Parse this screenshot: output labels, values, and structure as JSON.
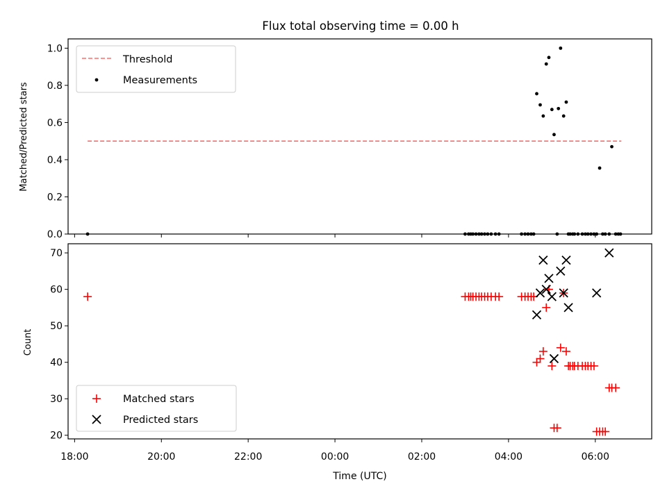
{
  "title": "Flux total observing time = 0.00 h",
  "chart_data": [
    {
      "panel": "top",
      "type": "scatter",
      "ylabel": "Matched/Predicted stars",
      "xlim": [
        -0.15,
        13.3
      ],
      "ylim": [
        0.0,
        1.05
      ],
      "yticks": [
        0.0,
        0.2,
        0.4,
        0.6,
        0.8,
        1.0
      ],
      "ytick_labels": [
        "0.0",
        "0.2",
        "0.4",
        "0.6",
        "0.8",
        "1.0"
      ],
      "legend_position": "upper left",
      "threshold": {
        "name": "Threshold",
        "value": 0.5,
        "x_range": [
          0.3,
          12.6
        ],
        "color": "#ff6b6b",
        "style": "dashed"
      },
      "series": [
        {
          "name": "Measurements",
          "marker": "dot",
          "color": "#000000",
          "x": [
            0.3,
            9.0,
            9.08,
            9.13,
            9.18,
            9.25,
            9.32,
            9.38,
            9.45,
            9.52,
            9.6,
            9.7,
            9.78,
            10.3,
            10.38,
            10.45,
            10.52,
            10.58,
            10.65,
            10.73,
            10.8,
            10.87,
            10.93,
            11.0,
            11.05,
            11.12,
            11.15,
            11.2,
            11.27,
            11.33,
            11.38,
            11.42,
            11.48,
            11.52,
            11.6,
            11.7,
            11.77,
            11.83,
            11.9,
            11.97,
            12.03,
            12.1,
            12.17,
            12.23,
            12.32,
            12.38,
            12.47,
            12.53,
            12.58
          ],
          "y": [
            0.0,
            0.0,
            0.0,
            0.0,
            0.0,
            0.0,
            0.0,
            0.0,
            0.0,
            0.0,
            0.0,
            0.0,
            0.0,
            0.0,
            0.0,
            0.0,
            0.0,
            0.0,
            0.755,
            0.695,
            0.635,
            0.915,
            0.95,
            0.67,
            0.535,
            0.0,
            0.675,
            1.0,
            0.635,
            0.71,
            0.0,
            0.0,
            0.0,
            0.0,
            0.0,
            0.0,
            0.0,
            0.0,
            0.0,
            0.0,
            0.0,
            0.355,
            0.0,
            0.0,
            0.0,
            0.47,
            0.0,
            0.0,
            0.0
          ]
        }
      ]
    },
    {
      "panel": "bottom",
      "type": "scatter",
      "ylabel": "Count",
      "xlabel": "Time (UTC)",
      "xlim": [
        -0.15,
        13.3
      ],
      "ylim": [
        19,
        72.5
      ],
      "yticks": [
        20,
        30,
        40,
        50,
        60,
        70
      ],
      "ytick_labels": [
        "20",
        "30",
        "40",
        "50",
        "60",
        "70"
      ],
      "xticks": [
        0,
        2,
        4,
        6,
        8,
        10,
        12
      ],
      "xtick_labels": [
        "18:00",
        "20:00",
        "22:00",
        "00:00",
        "02:00",
        "04:00",
        "06:00"
      ],
      "legend_position": "lower left",
      "series": [
        {
          "name": "Matched stars",
          "marker": "plus",
          "color": "#ff0000",
          "x": [
            0.3,
            9.0,
            9.08,
            9.13,
            9.18,
            9.25,
            9.32,
            9.38,
            9.45,
            9.52,
            9.6,
            9.7,
            9.78,
            10.3,
            10.38,
            10.45,
            10.52,
            10.58,
            10.65,
            10.73,
            10.8,
            10.87,
            10.93,
            11.0,
            11.05,
            11.12,
            11.2,
            11.27,
            11.33,
            11.38,
            11.42,
            11.48,
            11.52,
            11.6,
            11.7,
            11.77,
            11.83,
            11.9,
            11.97,
            12.03,
            12.1,
            12.17,
            12.23,
            12.32,
            12.38,
            12.47
          ],
          "y": [
            58,
            58,
            58,
            58,
            58,
            58,
            58,
            58,
            58,
            58,
            58,
            58,
            58,
            58,
            58,
            58,
            58,
            58,
            40,
            41,
            43,
            55,
            60,
            39,
            22,
            22,
            44,
            59,
            43,
            39,
            39,
            39,
            39,
            39,
            39,
            39,
            39,
            39,
            39,
            21,
            21,
            21,
            21,
            33,
            33,
            33
          ]
        },
        {
          "name": "Predicted stars",
          "marker": "x",
          "color": "#000000",
          "x": [
            10.65,
            10.73,
            10.8,
            10.87,
            10.93,
            11.0,
            11.05,
            11.2,
            11.27,
            11.33,
            11.38,
            12.03,
            12.32
          ],
          "y": [
            53,
            59,
            68,
            60,
            63,
            58,
            41,
            65,
            59,
            68,
            55,
            59,
            70
          ]
        }
      ]
    }
  ]
}
